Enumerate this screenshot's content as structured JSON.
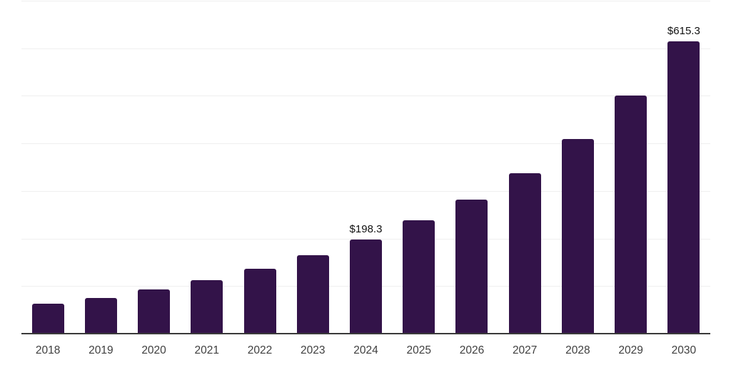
{
  "chart_data": {
    "type": "bar",
    "title": "",
    "xlabel": "",
    "ylabel": "",
    "categories": [
      "2018",
      "2019",
      "2020",
      "2021",
      "2022",
      "2023",
      "2024",
      "2025",
      "2026",
      "2027",
      "2028",
      "2029",
      "2030"
    ],
    "values": [
      63,
      75,
      93,
      113,
      136,
      165,
      198.3,
      238,
      282,
      338,
      409,
      500,
      615.3
    ],
    "data_labels": [
      "",
      "",
      "",
      "",
      "",
      "",
      "$198.3",
      "",
      "",
      "",
      "",
      "",
      "$615.3"
    ],
    "ylim": [
      0,
      700
    ],
    "gridline_values": [
      100,
      200,
      300,
      400,
      500,
      600,
      700
    ],
    "grid": "on",
    "legend": "none",
    "colors": {
      "bar": "#331349",
      "axis": "#3a3a3a",
      "gridline": "#efefef",
      "value_label": "#111111",
      "tick_label": "#3f3f3f",
      "background": "#ffffff"
    }
  }
}
